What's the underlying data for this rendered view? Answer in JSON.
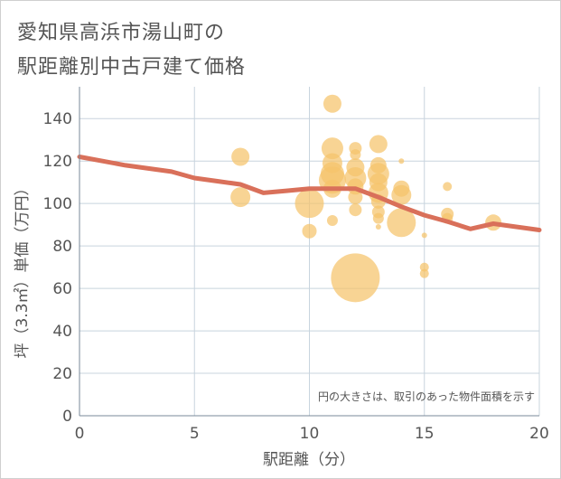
{
  "chart_data": {
    "type": "scatter",
    "title": "愛知県高浜市湯山町の\n駅距離別中古戸建て価格",
    "title_lines": [
      "愛知県高浜市湯山町の",
      "駅距離別中古戸建て価格"
    ],
    "xlabel": "駅距離（分）",
    "ylabel": "坪（3.3㎡）単価（万円）",
    "note": "円の大きさは、取引のあった物件面積を示す",
    "xlim": [
      0,
      20
    ],
    "ylim": [
      0,
      155
    ],
    "x_ticks": [
      "0",
      "5",
      "10",
      "15",
      "20"
    ],
    "y_ticks": [
      "0",
      "20",
      "40",
      "60",
      "80",
      "100",
      "120",
      "140"
    ],
    "grid": true,
    "colors": {
      "bubble": "#f5c36b",
      "line": "#d9705a",
      "grid": "#c8d4de",
      "text": "#555555"
    },
    "scatter": [
      {
        "x": 7,
        "y": 122,
        "size": 1.0
      },
      {
        "x": 7,
        "y": 103,
        "size": 1.1
      },
      {
        "x": 10,
        "y": 100,
        "size": 1.6
      },
      {
        "x": 10,
        "y": 87,
        "size": 0.8
      },
      {
        "x": 11,
        "y": 147,
        "size": 1.0
      },
      {
        "x": 11,
        "y": 126,
        "size": 1.2
      },
      {
        "x": 11,
        "y": 119,
        "size": 1.1
      },
      {
        "x": 11,
        "y": 114,
        "size": 1.3
      },
      {
        "x": 11,
        "y": 111,
        "size": 1.5
      },
      {
        "x": 11,
        "y": 107,
        "size": 1.0
      },
      {
        "x": 11,
        "y": 92,
        "size": 0.6
      },
      {
        "x": 12,
        "y": 126,
        "size": 0.7
      },
      {
        "x": 12,
        "y": 123,
        "size": 0.6
      },
      {
        "x": 12,
        "y": 117,
        "size": 1.0
      },
      {
        "x": 12,
        "y": 112,
        "size": 1.2
      },
      {
        "x": 12,
        "y": 108,
        "size": 0.9
      },
      {
        "x": 12,
        "y": 103,
        "size": 0.8
      },
      {
        "x": 12,
        "y": 97,
        "size": 0.7
      },
      {
        "x": 12,
        "y": 65,
        "size": 2.7
      },
      {
        "x": 13,
        "y": 128,
        "size": 1.0
      },
      {
        "x": 13,
        "y": 118,
        "size": 0.9
      },
      {
        "x": 13,
        "y": 114,
        "size": 1.2
      },
      {
        "x": 13,
        "y": 110,
        "size": 1.0
      },
      {
        "x": 13,
        "y": 105,
        "size": 1.1
      },
      {
        "x": 13,
        "y": 101,
        "size": 0.8
      },
      {
        "x": 13,
        "y": 96,
        "size": 0.7
      },
      {
        "x": 13,
        "y": 93,
        "size": 0.6
      },
      {
        "x": 13,
        "y": 89,
        "size": 0.3
      },
      {
        "x": 14,
        "y": 120,
        "size": 0.3
      },
      {
        "x": 14,
        "y": 107,
        "size": 0.9
      },
      {
        "x": 14,
        "y": 104,
        "size": 1.1
      },
      {
        "x": 14,
        "y": 91,
        "size": 1.6
      },
      {
        "x": 15,
        "y": 85,
        "size": 0.3
      },
      {
        "x": 15,
        "y": 70,
        "size": 0.5
      },
      {
        "x": 15,
        "y": 67,
        "size": 0.5
      },
      {
        "x": 16,
        "y": 108,
        "size": 0.5
      },
      {
        "x": 16,
        "y": 95,
        "size": 0.7
      },
      {
        "x": 16,
        "y": 93,
        "size": 0.6
      },
      {
        "x": 18,
        "y": 91,
        "size": 0.9
      }
    ],
    "trend": {
      "x": [
        0,
        1,
        2,
        3,
        4,
        5,
        6,
        7,
        8,
        9,
        10,
        11,
        12,
        13,
        14,
        15,
        16,
        17,
        18,
        19,
        20
      ],
      "y": [
        122,
        120,
        118,
        116.5,
        115,
        112,
        110.5,
        109,
        105,
        106,
        107,
        107,
        107,
        103,
        98.5,
        94.5,
        91.5,
        88,
        90.5,
        89,
        87.5
      ]
    }
  }
}
